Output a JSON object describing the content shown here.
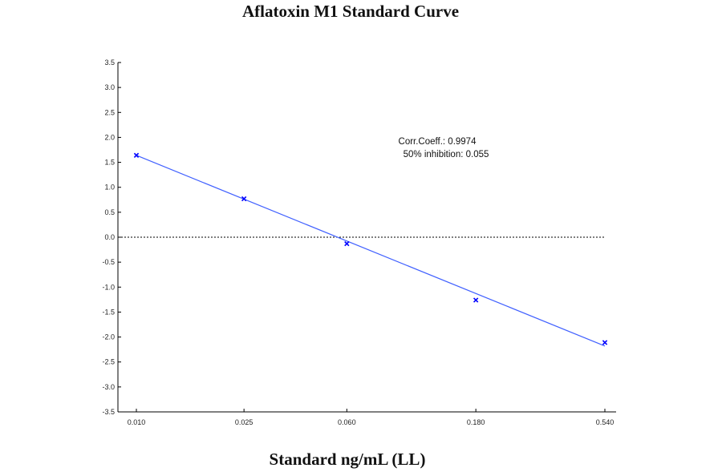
{
  "chart_data": {
    "type": "line",
    "title": "Aflatoxin M1 Standard Curve",
    "xlabel": "Standard ng/mL (LL)",
    "ylabel": "",
    "x_scale": "log",
    "x_ticks": [
      "0.010",
      "0.025",
      "0.060",
      "0.180",
      "0.540"
    ],
    "x_values": [
      0.01,
      0.025,
      0.06,
      0.18,
      0.54
    ],
    "ylim": [
      -3.5,
      3.5
    ],
    "y_ticks": [
      "3.5",
      "3.0",
      "2.5",
      "2.0",
      "1.5",
      "1.0",
      "0.5",
      "0.0",
      "-0.5",
      "-1.0",
      "-1.5",
      "-2.0",
      "-2.5",
      "-3.0",
      "-3.5"
    ],
    "series": [
      {
        "points": [
          {
            "x": 0.01,
            "y": 1.64
          },
          {
            "x": 0.025,
            "y": 0.77
          },
          {
            "x": 0.06,
            "y": -0.13
          },
          {
            "x": 0.18,
            "y": -1.26
          },
          {
            "x": 0.54,
            "y": -2.11
          }
        ],
        "color": "#0000ff"
      }
    ],
    "fit_line": {
      "start": {
        "x": 0.01,
        "y": 1.64
      },
      "end": {
        "x": 0.54,
        "y": -2.18
      },
      "color": "#4060ff"
    },
    "reference_line": {
      "y": 0.0,
      "style": "dashed"
    },
    "annotations": [
      "Corr.Coeff.: 0.9974",
      "50% inhibition: 0.055"
    ],
    "grid": false,
    "legend": "none"
  }
}
